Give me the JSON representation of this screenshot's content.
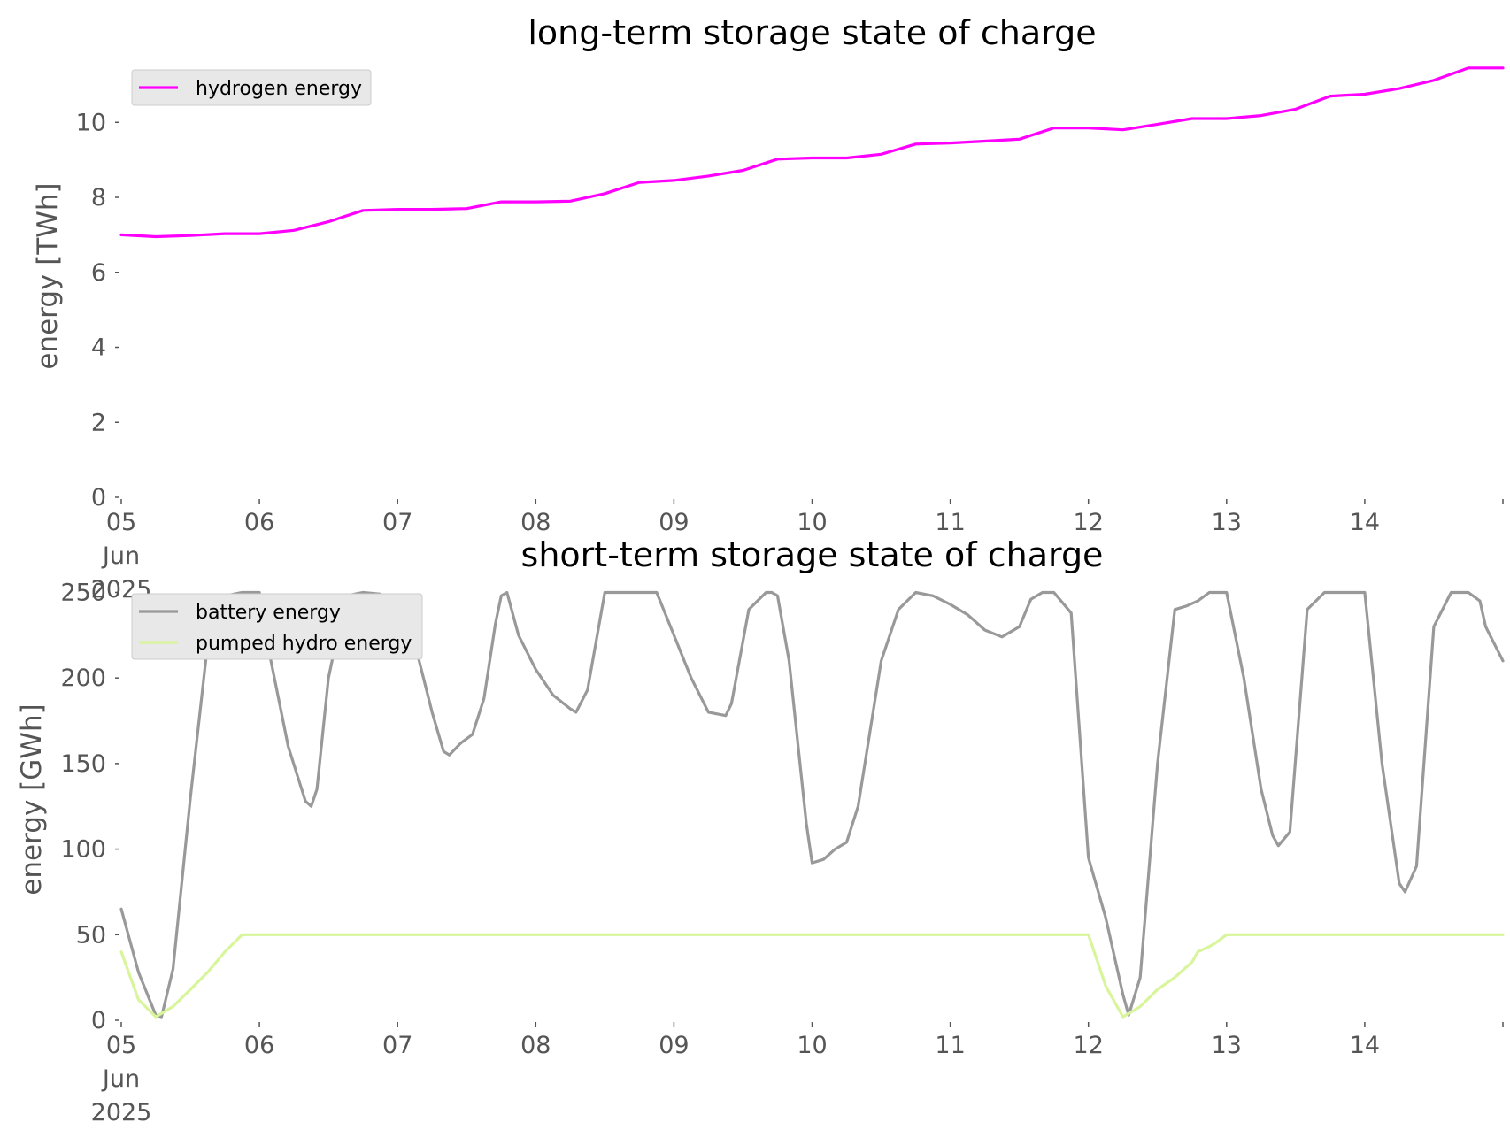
{
  "colors": {
    "hydrogen": "#ff00ff",
    "battery": "#999999",
    "pumped_hydro": "#d8f59b",
    "legend_bg": "#e8e8e8",
    "legend_border": "#cccccc",
    "tick_text": "#555555"
  },
  "chart_data": [
    {
      "type": "line",
      "title": "long-term storage state of charge",
      "ylabel": "energy [TWh]",
      "xlabel": "",
      "xlim": [
        "2025-06-05",
        "2025-06-15"
      ],
      "ylim": [
        0,
        11.8
      ],
      "yticks": [
        0,
        2,
        4,
        6,
        8,
        10
      ],
      "ytick_labels": [
        "0",
        "2",
        "4",
        "6",
        "8",
        "10"
      ],
      "xtick_labels": [
        [
          "05",
          "Jun",
          "2025"
        ],
        [
          "06"
        ],
        [
          "07"
        ],
        [
          "08"
        ],
        [
          "09"
        ],
        [
          "10"
        ],
        [
          "11"
        ],
        [
          "12"
        ],
        [
          "13"
        ],
        [
          "14"
        ]
      ],
      "legend": {
        "placement": "top-left",
        "entries": [
          "hydrogen energy"
        ]
      },
      "grid": false,
      "series": [
        {
          "name": "hydrogen energy",
          "color": "#ff00ff",
          "x": [
            "2025-06-05",
            "2025-06-05 06:00",
            "2025-06-05 12:00",
            "2025-06-05 18:00",
            "2025-06-06",
            "2025-06-06 06:00",
            "2025-06-06 12:00",
            "2025-06-06 18:00",
            "2025-06-07",
            "2025-06-07 06:00",
            "2025-06-07 12:00",
            "2025-06-07 18:00",
            "2025-06-08",
            "2025-06-08 06:00",
            "2025-06-08 12:00",
            "2025-06-08 18:00",
            "2025-06-09",
            "2025-06-09 06:00",
            "2025-06-09 12:00",
            "2025-06-09 18:00",
            "2025-06-10",
            "2025-06-10 06:00",
            "2025-06-10 12:00",
            "2025-06-10 18:00",
            "2025-06-11",
            "2025-06-11 06:00",
            "2025-06-11 12:00",
            "2025-06-11 18:00",
            "2025-06-12",
            "2025-06-12 06:00",
            "2025-06-12 12:00",
            "2025-06-12 18:00",
            "2025-06-13",
            "2025-06-13 06:00",
            "2025-06-13 12:00",
            "2025-06-13 18:00",
            "2025-06-14",
            "2025-06-14 06:00",
            "2025-06-14 12:00",
            "2025-06-14 18:00",
            "2025-06-15"
          ],
          "y": [
            7.0,
            6.95,
            6.98,
            7.03,
            7.03,
            7.12,
            7.35,
            7.65,
            7.68,
            7.68,
            7.7,
            7.88,
            7.88,
            7.9,
            8.1,
            8.4,
            8.45,
            8.57,
            8.72,
            9.02,
            9.05,
            9.05,
            9.15,
            9.42,
            9.45,
            9.5,
            9.55,
            9.85,
            9.85,
            9.8,
            9.95,
            10.1,
            10.1,
            10.18,
            10.35,
            10.7,
            10.75,
            10.9,
            11.12,
            11.45,
            11.45
          ]
        }
      ]
    },
    {
      "type": "line",
      "title": "short-term storage state of charge",
      "ylabel": "energy [GWh]",
      "xlabel": "",
      "xlim": [
        "2025-06-05",
        "2025-06-15"
      ],
      "ylim": [
        0,
        258
      ],
      "yticks": [
        0,
        50,
        100,
        150,
        200,
        250
      ],
      "ytick_labels": [
        "0",
        "50",
        "100",
        "150",
        "200",
        "250"
      ],
      "xtick_labels": [
        [
          "05",
          "Jun",
          "2025"
        ],
        [
          "06"
        ],
        [
          "07"
        ],
        [
          "08"
        ],
        [
          "09"
        ],
        [
          "10"
        ],
        [
          "11"
        ],
        [
          "12"
        ],
        [
          "13"
        ],
        [
          "14"
        ]
      ],
      "legend": {
        "placement": "top-left",
        "entries": [
          "battery energy",
          "pumped hydro energy"
        ]
      },
      "grid": false,
      "series": [
        {
          "name": "battery energy",
          "color": "#999999",
          "x": [
            "2025-06-05",
            "2025-06-05 03:00",
            "2025-06-05 06:00",
            "2025-06-05 07:00",
            "2025-06-05 09:00",
            "2025-06-05 12:00",
            "2025-06-05 15:00",
            "2025-06-05 18:00",
            "2025-06-05 21:00",
            "2025-06-06",
            "2025-06-06 02:00",
            "2025-06-06 05:00",
            "2025-06-06 08:00",
            "2025-06-06 09:00",
            "2025-06-06 10:00",
            "2025-06-06 12:00",
            "2025-06-06 15:00",
            "2025-06-06 18:00",
            "2025-06-06 21:00",
            "2025-06-07",
            "2025-06-07 03:00",
            "2025-06-07 06:00",
            "2025-06-07 08:00",
            "2025-06-07 09:00",
            "2025-06-07 11:00",
            "2025-06-07 13:00",
            "2025-06-07 15:00",
            "2025-06-07 17:00",
            "2025-06-07 18:00",
            "2025-06-07 19:00",
            "2025-06-07 21:00",
            "2025-06-08",
            "2025-06-08 03:00",
            "2025-06-08 06:00",
            "2025-06-08 07:00",
            "2025-06-08 09:00",
            "2025-06-08 12:00",
            "2025-06-08 15:00",
            "2025-06-08 18:00",
            "2025-06-08 21:00",
            "2025-06-09",
            "2025-06-09 03:00",
            "2025-06-09 06:00",
            "2025-06-09 09:00",
            "2025-06-09 10:00",
            "2025-06-09 13:00",
            "2025-06-09 16:00",
            "2025-06-09 17:00",
            "2025-06-09 18:00",
            "2025-06-09 20:00",
            "2025-06-09 23:00",
            "2025-06-10",
            "2025-06-10 02:00",
            "2025-06-10 04:00",
            "2025-06-10 06:00",
            "2025-06-10 08:00",
            "2025-06-10 12:00",
            "2025-06-10 15:00",
            "2025-06-10 18:00",
            "2025-06-10 21:00",
            "2025-06-11",
            "2025-06-11 03:00",
            "2025-06-11 06:00",
            "2025-06-11 09:00",
            "2025-06-11 12:00",
            "2025-06-11 14:00",
            "2025-06-11 16:00",
            "2025-06-11 18:00",
            "2025-06-11 21:00",
            "2025-06-12",
            "2025-06-12 03:00",
            "2025-06-12 06:00",
            "2025-06-12 07:00",
            "2025-06-12 09:00",
            "2025-06-12 12:00",
            "2025-06-12 15:00",
            "2025-06-12 17:00",
            "2025-06-12 19:00",
            "2025-06-12 21:00",
            "2025-06-13",
            "2025-06-13 03:00",
            "2025-06-13 06:00",
            "2025-06-13 08:00",
            "2025-06-13 09:00",
            "2025-06-13 11:00",
            "2025-06-13 14:00",
            "2025-06-13 17:00",
            "2025-06-13 20:00",
            "2025-06-13 23:00",
            "2025-06-14",
            "2025-06-14 03:00",
            "2025-06-14 06:00",
            "2025-06-14 07:00",
            "2025-06-14 09:00",
            "2025-06-14 12:00",
            "2025-06-14 15:00",
            "2025-06-14 18:00",
            "2025-06-14 20:00",
            "2025-06-14 21:00",
            "2025-06-15"
          ],
          "y": [
            65,
            28,
            3,
            2,
            30,
            130,
            220,
            248,
            250,
            250,
            210,
            160,
            128,
            125,
            135,
            200,
            248,
            250,
            249,
            240,
            220,
            180,
            157,
            155,
            162,
            167,
            188,
            232,
            248,
            250,
            225,
            205,
            190,
            182,
            180,
            193,
            250,
            250,
            250,
            250,
            225,
            200,
            180,
            178,
            185,
            240,
            250,
            250,
            248,
            210,
            115,
            92,
            94,
            100,
            104,
            125,
            210,
            240,
            250,
            248,
            243,
            237,
            228,
            224,
            230,
            246,
            250,
            250,
            238,
            95,
            60,
            15,
            3,
            25,
            150,
            240,
            242,
            245,
            250,
            250,
            200,
            135,
            108,
            102,
            110,
            240,
            250,
            250,
            250,
            250,
            150,
            80,
            75,
            90,
            230,
            250,
            250,
            245,
            230,
            210
          ]
        },
        {
          "name": "pumped hydro energy",
          "color": "#d8f59b",
          "x": [
            "2025-06-05",
            "2025-06-05 03:00",
            "2025-06-05 06:00",
            "2025-06-05 09:00",
            "2025-06-05 12:00",
            "2025-06-05 15:00",
            "2025-06-05 18:00",
            "2025-06-05 21:00",
            "2025-06-06",
            "2025-06-07",
            "2025-06-08",
            "2025-06-09",
            "2025-06-10",
            "2025-06-11",
            "2025-06-11 20:00",
            "2025-06-12",
            "2025-06-12 03:00",
            "2025-06-12 06:00",
            "2025-06-12 09:00",
            "2025-06-12 12:00",
            "2025-06-12 15:00",
            "2025-06-12 18:00",
            "2025-06-12 19:00",
            "2025-06-12 21:00",
            "2025-06-12 22:00",
            "2025-06-13",
            "2025-06-14",
            "2025-06-15"
          ],
          "y": [
            40,
            12,
            2,
            8,
            18,
            28,
            40,
            50,
            50,
            50,
            50,
            50,
            50,
            50,
            50,
            50,
            20,
            2,
            8,
            18,
            25,
            34,
            40,
            43,
            45,
            50,
            50,
            50
          ]
        }
      ]
    }
  ]
}
